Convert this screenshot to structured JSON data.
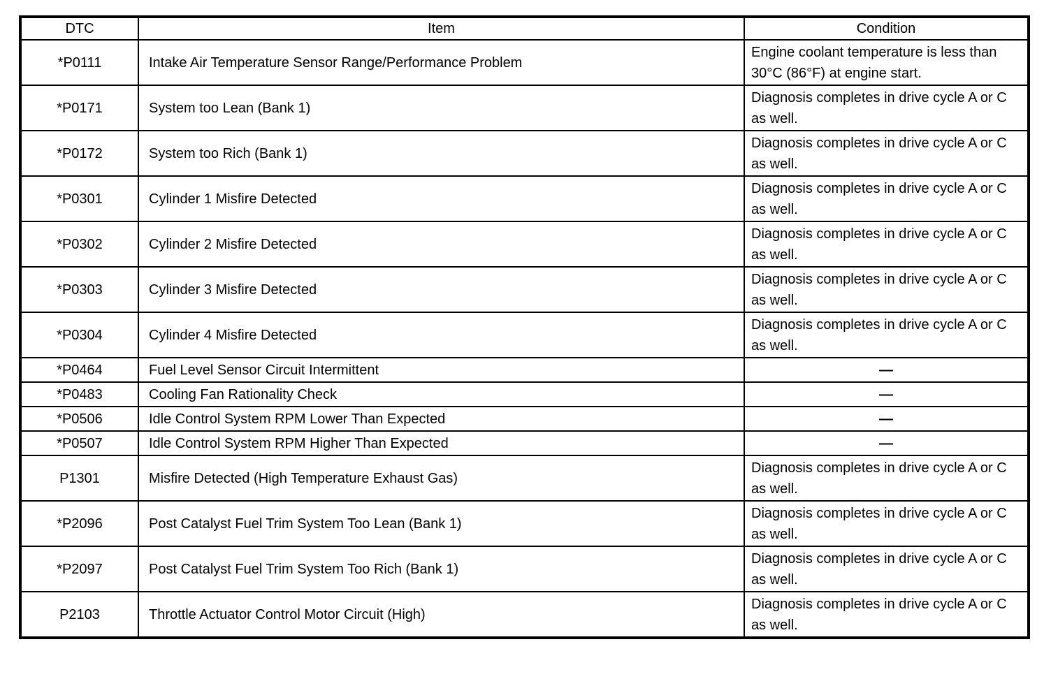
{
  "page": {
    "background_color": "#ffffff",
    "border_color": "#000000",
    "text_color": "#000000"
  },
  "table": {
    "headers": [
      "DTC",
      "Item",
      "Condition"
    ],
    "dash": "—",
    "rows": [
      {
        "dtc": "*P0111",
        "item": "Intake Air Temperature Sensor Range/Performance Problem",
        "condition": "Engine coolant temperature is less than 30°C (86°F) at engine start.",
        "size": "tall"
      },
      {
        "dtc": "*P0171",
        "item": "System too Lean (Bank 1)",
        "condition": "Diagnosis completes in drive cycle A or C as well.",
        "size": "tall"
      },
      {
        "dtc": "*P0172",
        "item": "System too Rich (Bank 1)",
        "condition": "Diagnosis completes in drive cycle A or C as well.",
        "size": "tall"
      },
      {
        "dtc": "*P0301",
        "item": "Cylinder 1 Misfire Detected",
        "condition": "Diagnosis completes in drive cycle A or C as well.",
        "size": "tall"
      },
      {
        "dtc": "*P0302",
        "item": "Cylinder 2 Misfire Detected",
        "condition": "Diagnosis completes in drive cycle A or C as well.",
        "size": "tall"
      },
      {
        "dtc": "*P0303",
        "item": "Cylinder 3 Misfire Detected",
        "condition": "Diagnosis completes in drive cycle A or C as well.",
        "size": "tall"
      },
      {
        "dtc": "*P0304",
        "item": "Cylinder 4 Misfire Detected",
        "condition": "Diagnosis completes in drive cycle A or C as well.",
        "size": "tall"
      },
      {
        "dtc": "*P0464",
        "item": "Fuel Level Sensor Circuit Intermittent",
        "condition": "—",
        "size": "short"
      },
      {
        "dtc": "*P0483",
        "item": "Cooling Fan Rationality Check",
        "condition": "—",
        "size": "short"
      },
      {
        "dtc": "*P0506",
        "item": "Idle Control System RPM Lower Than Expected",
        "condition": "—",
        "size": "short"
      },
      {
        "dtc": "*P0507",
        "item": "Idle Control System RPM Higher Than Expected",
        "condition": "—",
        "size": "short"
      },
      {
        "dtc": "P1301",
        "item": "Misfire Detected (High Temperature Exhaust Gas)",
        "condition": "Diagnosis completes in drive cycle A or C as well.",
        "size": "tall"
      },
      {
        "dtc": "*P2096",
        "item": "Post Catalyst Fuel Trim System Too Lean (Bank 1)",
        "condition": "Diagnosis completes in drive cycle A or C as well.",
        "size": "tall"
      },
      {
        "dtc": "*P2097",
        "item": "Post Catalyst Fuel Trim System Too Rich (Bank 1)",
        "condition": "Diagnosis completes in drive cycle A or C as well.",
        "size": "tall"
      },
      {
        "dtc": "P2103",
        "item": "Throttle Actuator Control Motor Circuit (High)",
        "condition": "Diagnosis completes in drive cycle A or C as well.",
        "size": "tall"
      }
    ]
  }
}
